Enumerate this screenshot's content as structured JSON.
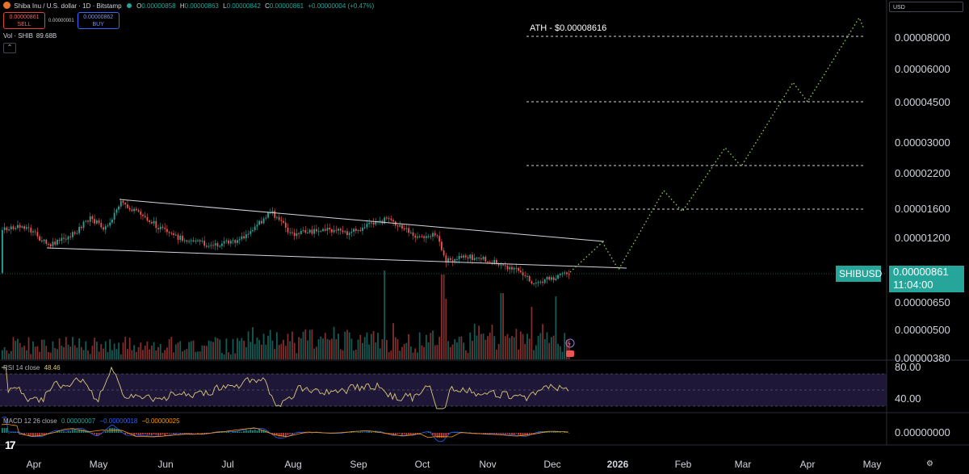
{
  "header": {
    "title": "Shiba Inu / U.S. dollar · 1D · Bitstamp",
    "ohlc": [
      {
        "label": "O",
        "value": "0.00000858"
      },
      {
        "label": "H",
        "value": "0.00000863"
      },
      {
        "label": "L",
        "value": "0.00000842"
      },
      {
        "label": "C",
        "value": "0.00000861"
      }
    ],
    "change": "+0.00000004 (+0.47%)"
  },
  "trade": {
    "sell_price": "0.00000861",
    "sell_label": "SELL",
    "spread": "0.00000001",
    "buy_price": "0.00000862",
    "buy_label": "BUY"
  },
  "volume_label": {
    "name": "Vol · SHIB",
    "value": "89.68B"
  },
  "collapse_glyph": "⌃",
  "currency": "USD",
  "price_axis_labels": [
    "0.00008000",
    "0.00006000",
    "0.00004500",
    "0.00003000",
    "0.00002200",
    "0.00001600",
    "0.00001200",
    "0.00000650",
    "0.00000500",
    "0.00000380"
  ],
  "current_price": {
    "symbol": "SHIBUSD",
    "price": "0.00000861",
    "countdown": "11:04:00"
  },
  "ath_label": "ATH - $0.00008616",
  "rsi": {
    "label": "RSI 14 close",
    "value": "48.46",
    "levels": [
      "80.00",
      "40.00"
    ]
  },
  "macd": {
    "label": "MACD 12 26 close",
    "v1": "0.00000007",
    "v2": "−0.00000018",
    "v3": "−0.00000025",
    "axis": "0.00000000"
  },
  "time_labels": [
    "Apr",
    "May",
    "Jun",
    "Jul",
    "Aug",
    "Sep",
    "Oct",
    "Nov",
    "Dec",
    "2026",
    "Feb",
    "Mar",
    "Apr",
    "May"
  ],
  "logo_text": "17",
  "settings_glyph": "⚙",
  "colors": {
    "up": "#26a69a",
    "down": "#ef5350",
    "rsi_line": "#d9c77a",
    "projection": "#8bc34a"
  },
  "chart_data": {
    "type": "candlestick",
    "scale": "log",
    "y_range": [
      3.8e-06,
      9.5e-05
    ],
    "ath": 8.616e-05,
    "target_levels": [
      8e-05,
      4.5e-05,
      2.4e-05,
      1.6e-05
    ],
    "projection_path": [
      [
        "2025-12-08",
        8.7e-06
      ],
      [
        "2025-12-22",
        1.15e-05
      ],
      [
        "2025-12-31",
        9.4e-06
      ],
      [
        "2026-01-29",
        1.95e-05
      ],
      [
        "2026-02-05",
        1.6e-05
      ],
      [
        "2026-02-29",
        2.9e-05
      ],
      [
        "2026-03-10",
        2.35e-05
      ],
      [
        "2026-03-31",
        5.2e-05
      ],
      [
        "2026-04-09",
        4.4e-05
      ],
      [
        "2026-05-03",
        9e-05
      ],
      [
        "2026-05-08",
        8e-05
      ]
    ],
    "channel_upper": [
      [
        "2025-05-12",
        1.75e-05
      ],
      [
        "2025-12-22",
        1.14e-05
      ]
    ],
    "channel_lower": [
      [
        "2025-04-07",
        1.08e-05
      ],
      [
        "2026-01-01",
        9.2e-06
      ]
    ]
  }
}
